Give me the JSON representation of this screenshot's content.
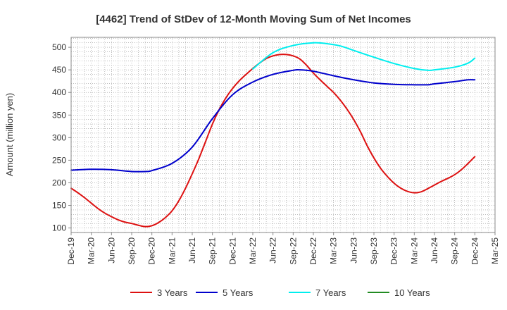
{
  "chart_data": {
    "type": "line",
    "title": "[4462]  Trend of StDev of 12-Month Moving Sum of Net Incomes",
    "xlabel": "",
    "ylabel": "Amount (million yen)",
    "ylim": [
      90,
      522
    ],
    "yticks": [
      100,
      150,
      200,
      250,
      300,
      350,
      400,
      450,
      500
    ],
    "x_tick_labels": [
      "Dec-19",
      "Mar-20",
      "Jun-20",
      "Sep-20",
      "Dec-20",
      "Mar-21",
      "Jun-21",
      "Sep-21",
      "Dec-21",
      "Mar-22",
      "Jun-22",
      "Sep-22",
      "Dec-22",
      "Mar-23",
      "Jun-23",
      "Sep-23",
      "Dec-23",
      "Mar-24",
      "Jun-24",
      "Sep-24",
      "Dec-24",
      "Mar-25"
    ],
    "grid": true,
    "legend_position": "bottom",
    "series": [
      {
        "name": "3 Years",
        "color": "#dd1111",
        "points": [
          [
            "Dec-19",
            188
          ],
          [
            "Jan-20",
            178
          ],
          [
            "Feb-20",
            167
          ],
          [
            "Mar-20",
            155
          ],
          [
            "Apr-20",
            143
          ],
          [
            "May-20",
            133
          ],
          [
            "Jun-20",
            125
          ],
          [
            "Jul-20",
            118
          ],
          [
            "Aug-20",
            113
          ],
          [
            "Sep-20",
            110
          ],
          [
            "Oct-20",
            106
          ],
          [
            "Nov-20",
            103
          ],
          [
            "Dec-20",
            105
          ],
          [
            "Jan-21",
            112
          ],
          [
            "Feb-21",
            123
          ],
          [
            "Mar-21",
            138
          ],
          [
            "Apr-21",
            160
          ],
          [
            "May-21",
            188
          ],
          [
            "Jun-21",
            220
          ],
          [
            "Jul-21",
            254
          ],
          [
            "Aug-21",
            292
          ],
          [
            "Sep-21",
            330
          ],
          [
            "Oct-21",
            362
          ],
          [
            "Nov-21",
            388
          ],
          [
            "Dec-21",
            409
          ],
          [
            "Jan-22",
            426
          ],
          [
            "Feb-22",
            440
          ],
          [
            "Mar-22",
            453
          ],
          [
            "Apr-22",
            465
          ],
          [
            "May-22",
            475
          ],
          [
            "Jun-22",
            481
          ],
          [
            "Jul-22",
            484
          ],
          [
            "Aug-22",
            484
          ],
          [
            "Sep-22",
            481
          ],
          [
            "Oct-22",
            474
          ],
          [
            "Nov-22",
            460
          ],
          [
            "Dec-22",
            443
          ],
          [
            "Jan-23",
            428
          ],
          [
            "Feb-23",
            414
          ],
          [
            "Mar-23",
            400
          ],
          [
            "Apr-23",
            383
          ],
          [
            "May-23",
            363
          ],
          [
            "Jun-23",
            340
          ],
          [
            "Jul-23",
            313
          ],
          [
            "Aug-23",
            282
          ],
          [
            "Sep-23",
            255
          ],
          [
            "Oct-23",
            232
          ],
          [
            "Nov-23",
            214
          ],
          [
            "Dec-23",
            199
          ],
          [
            "Jan-24",
            188
          ],
          [
            "Feb-24",
            181
          ],
          [
            "Mar-24",
            178
          ],
          [
            "Apr-24",
            180
          ],
          [
            "May-24",
            187
          ],
          [
            "Jun-24",
            195
          ],
          [
            "Jul-24",
            203
          ],
          [
            "Aug-24",
            210
          ],
          [
            "Sep-24",
            218
          ],
          [
            "Oct-24",
            229
          ],
          [
            "Nov-24",
            243
          ],
          [
            "Dec-24",
            258
          ]
        ]
      },
      {
        "name": "5 Years",
        "color": "#0000cc",
        "points": [
          [
            "Dec-19",
            228
          ],
          [
            "Mar-20",
            230
          ],
          [
            "Jun-20",
            229
          ],
          [
            "Sep-20",
            225
          ],
          [
            "Nov-20",
            225
          ],
          [
            "Dec-20",
            227
          ],
          [
            "Mar-21",
            243
          ],
          [
            "Jun-21",
            279
          ],
          [
            "Sep-21",
            342
          ],
          [
            "Dec-21",
            395
          ],
          [
            "Mar-22",
            423
          ],
          [
            "Jun-22",
            440
          ],
          [
            "Sep-22",
            449
          ],
          [
            "Oct-22",
            450
          ],
          [
            "Dec-22",
            447
          ],
          [
            "Mar-23",
            437
          ],
          [
            "Jun-23",
            428
          ],
          [
            "Sep-23",
            421
          ],
          [
            "Dec-23",
            418
          ],
          [
            "Mar-24",
            417
          ],
          [
            "May-24",
            417
          ],
          [
            "Jun-24",
            419
          ],
          [
            "Sep-24",
            424
          ],
          [
            "Nov-24",
            428
          ],
          [
            "Dec-24",
            428
          ]
        ]
      },
      {
        "name": "7 Years",
        "color": "#00eeee",
        "points": [
          [
            "Mar-22",
            452
          ],
          [
            "Jun-22",
            488
          ],
          [
            "Sep-22",
            504
          ],
          [
            "Dec-22",
            510
          ],
          [
            "Feb-23",
            508
          ],
          [
            "Apr-23",
            503
          ],
          [
            "Jun-23",
            493
          ],
          [
            "Sep-23",
            478
          ],
          [
            "Dec-23",
            464
          ],
          [
            "Mar-24",
            453
          ],
          [
            "May-24",
            449
          ],
          [
            "Jun-24",
            450
          ],
          [
            "Sep-24",
            456
          ],
          [
            "Nov-24",
            465
          ],
          [
            "Dec-24",
            476
          ]
        ]
      },
      {
        "name": "10 Years",
        "color": "#228b22",
        "points": []
      }
    ]
  }
}
